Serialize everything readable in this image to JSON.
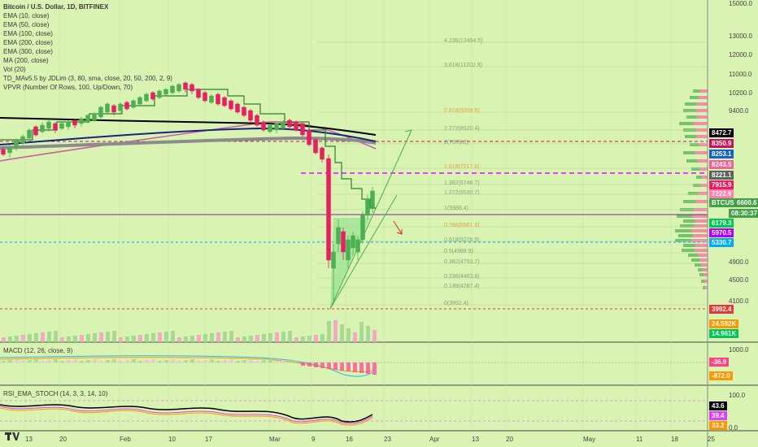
{
  "legend": {
    "title": "Bitcoin / U.S. Dollar, 1D, BITFINEX",
    "lines": [
      "EMA (10, close)",
      "EMA (50, close)",
      "EMA (100, close)",
      "EMA (200, close)",
      "EMA (300, close)",
      "MA (200, close)",
      "Vol (20)",
      "TD_MAv5.5 by JDLim (3, 80, sma, close, 20, 50, 200, 2, 9)",
      "VPVR (Number Of Rows, 100, Up/Down, 70)"
    ]
  },
  "indicators": {
    "macd_label": "MACD (12, 26, close, 9)",
    "rsi_label": "RSI_EMA_STOCH (14, 3, 3, 14, 10)"
  },
  "price_axis": {
    "ticks": [
      "15000.0",
      "13000.0",
      "12000.0",
      "11000.0",
      "10200.0",
      "9400.0",
      "4900.0",
      "4500.0",
      "4100.0"
    ],
    "tags": [
      {
        "label": "8472.7",
        "bg": "#000000"
      },
      {
        "label": "8350.9",
        "bg": "#c2185b"
      },
      {
        "label": "8253.1",
        "bg": "#1565c0"
      },
      {
        "label": "8243.5",
        "bg": "#f06292"
      },
      {
        "label": "8221.1",
        "bg": "#616161"
      },
      {
        "label": "7915.9",
        "bg": "#e91e63"
      },
      {
        "label": "7222.9",
        "bg": "#ff80ab"
      },
      {
        "label": "6600.6",
        "bg": "#43a047"
      },
      {
        "label": "08:30:37",
        "bg": "#43a047"
      },
      {
        "label": "6179.3",
        "bg": "#00c853"
      },
      {
        "label": "5970.5",
        "bg": "#aa00ff"
      },
      {
        "label": "5330.7",
        "bg": "#03a9f4"
      },
      {
        "label": "3992.4",
        "bg": "#e53935"
      },
      {
        "label": "24.592K",
        "bg": "#ff9800"
      },
      {
        "label": "14.961K",
        "bg": "#00c853"
      }
    ],
    "symbol_tag": "BTCUSD",
    "macd_ticks": [
      "1000.0",
      "0.0"
    ],
    "macd_tags": [
      {
        "label": "-36.9",
        "bg": "#ff4081"
      },
      {
        "label": "-872.0",
        "bg": "#ff9800"
      }
    ],
    "rsi_ticks": [
      "100.0",
      "0.0"
    ],
    "rsi_tags": [
      {
        "label": "43.6",
        "bg": "#000000"
      },
      {
        "label": "39.4",
        "bg": "#e040fb"
      },
      {
        "label": "33.2",
        "bg": "#ff9800"
      }
    ]
  },
  "time_axis": [
    "13",
    "20",
    "Feb",
    "10",
    "17",
    "Mar",
    "9",
    "16",
    "23",
    "Apr",
    "13",
    "20",
    "May",
    "11",
    "18",
    "25"
  ],
  "fib_levels": [
    "4.236(12494.5)",
    "3.618(11202.9)",
    "2.618(9209.5)",
    "2.272(8520.4)",
    "2(7978.2)",
    "1.618(7217.8)",
    "1.382(6748.7)",
    "1.272(6530.7)",
    "1(5988.4)",
    "0.786(5561.9)",
    "0.618(5226.9)",
    "0.5(4988.9)",
    "0.382(4753.7)",
    "0.236(4463.8)",
    "0.149(4287.4)",
    "0(3992.4)"
  ],
  "colors": {
    "background": "#d8f3b2",
    "bull_candle": "#4caf50",
    "bear_candle": "#e91e63",
    "ema10": "#000000",
    "ema50": "#1a237e",
    "ma200": "#888888",
    "ema_pink": "#d05ca0",
    "td_line": "#2e7d32",
    "target_arrow": "#d32f2f"
  }
}
